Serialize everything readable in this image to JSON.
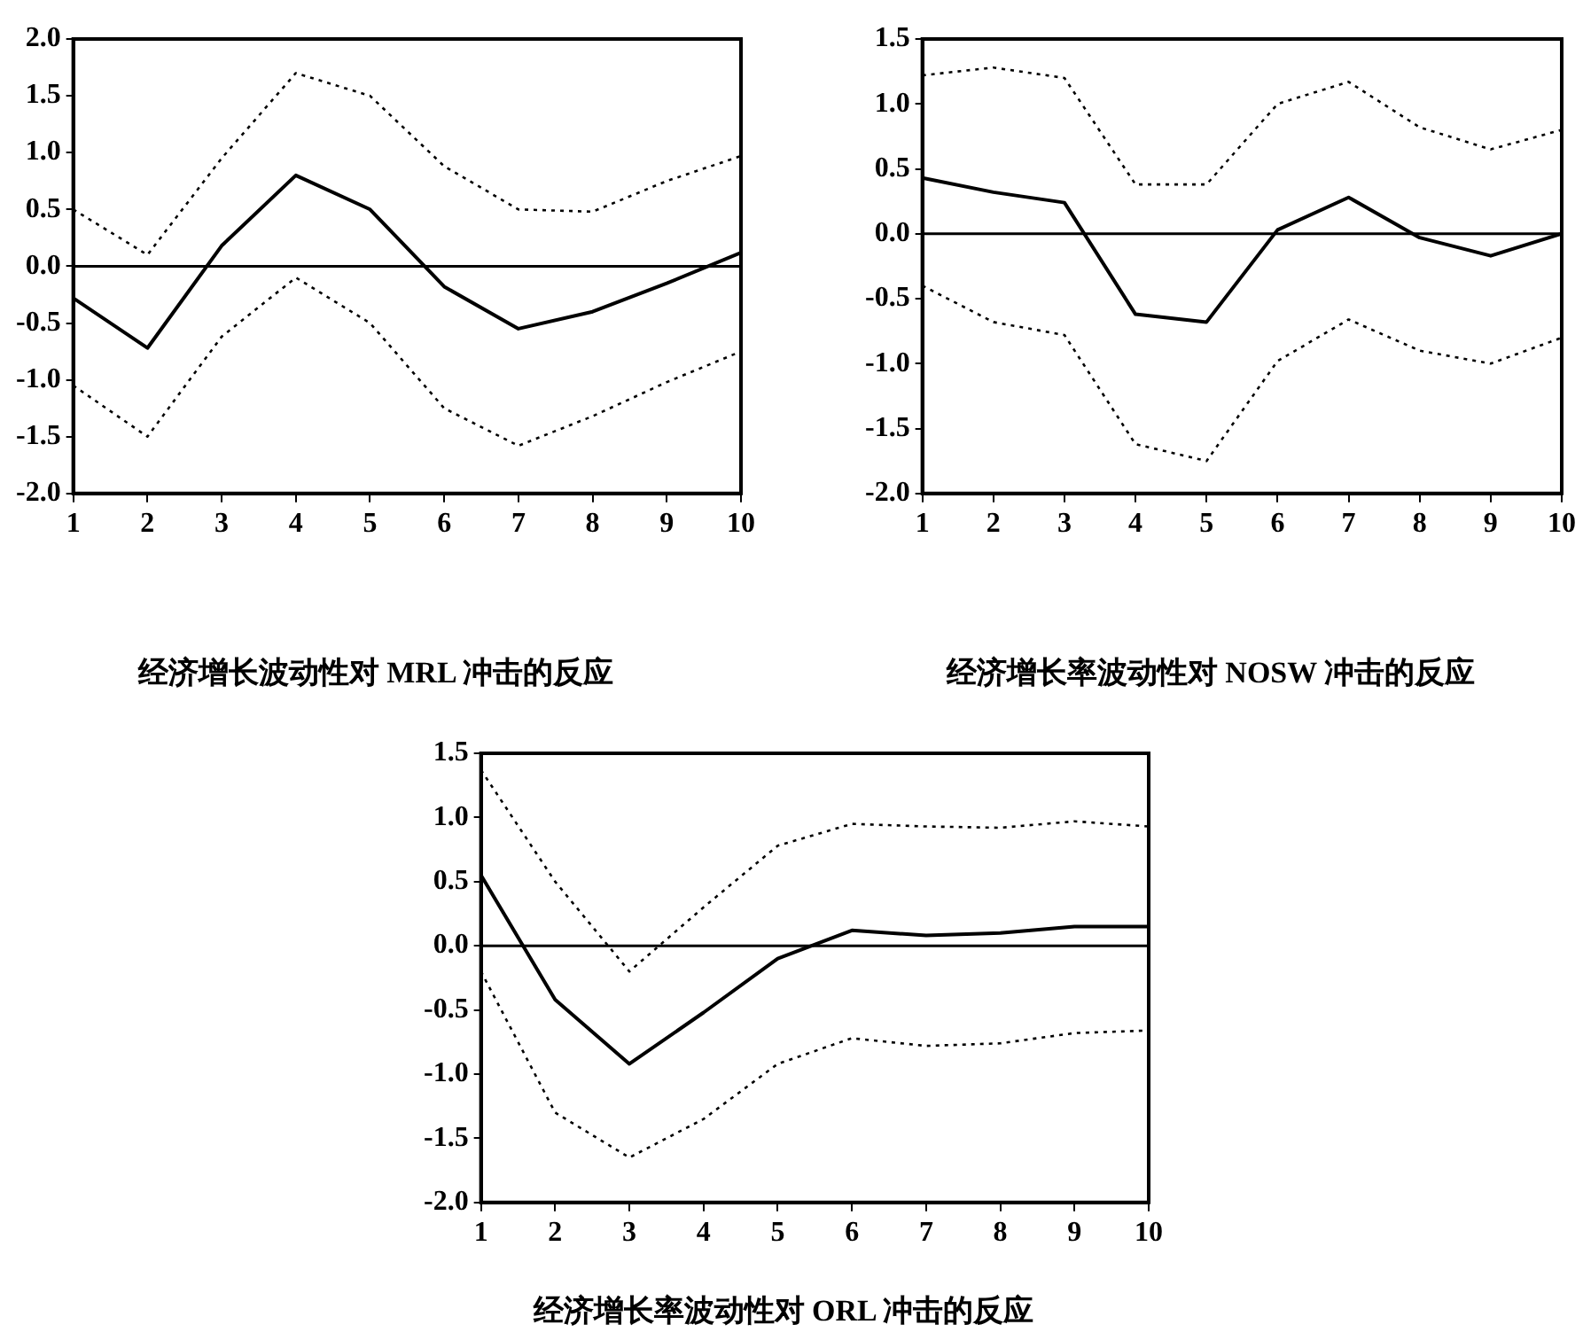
{
  "chart_data": [
    {
      "type": "line",
      "title": "经济增长波动性对 MRL 冲击的反应",
      "x": [
        1,
        2,
        3,
        4,
        5,
        6,
        7,
        8,
        9,
        10
      ],
      "xlim": [
        1,
        10
      ],
      "xticks": [
        1,
        2,
        3,
        4,
        5,
        6,
        7,
        8,
        9,
        10
      ],
      "ylim": [
        -2,
        2
      ],
      "yticks": [
        {
          "value": -2,
          "label": "-2.0"
        },
        {
          "value": -1.5,
          "label": "-1.5"
        },
        {
          "value": -1,
          "label": "-1.0"
        },
        {
          "value": -0.5,
          "label": "-0.5"
        },
        {
          "value": 0,
          "label": "0.0"
        },
        {
          "value": 0.5,
          "label": "0.5"
        },
        {
          "value": 1,
          "label": "1.0"
        },
        {
          "value": 1.5,
          "label": "1.5"
        },
        {
          "value": 2,
          "label": "2.0"
        }
      ],
      "marker": "none",
      "legend": false,
      "ref_lines": [
        {
          "axis": "y",
          "value": 0,
          "color": "#000000"
        }
      ],
      "series": [
        {
          "color": "#000000",
          "line_style": "solid",
          "values": [
            -0.28,
            -0.72,
            0.18,
            0.8,
            0.5,
            -0.18,
            -0.55,
            -0.4,
            -0.15,
            0.12
          ]
        },
        {
          "color": "#000000",
          "line_style": "dotted",
          "values": [
            0.5,
            0.1,
            0.95,
            1.7,
            1.5,
            0.88,
            0.5,
            0.48,
            0.75,
            0.97
          ]
        },
        {
          "color": "#000000",
          "line_style": "dotted",
          "values": [
            -1.05,
            -1.5,
            -0.62,
            -0.1,
            -0.5,
            -1.25,
            -1.58,
            -1.32,
            -1.02,
            -0.75
          ]
        }
      ]
    },
    {
      "type": "line",
      "title": "经济增长率波动性对 NOSW 冲击的反应",
      "x": [
        1,
        2,
        3,
        4,
        5,
        6,
        7,
        8,
        9,
        10
      ],
      "xlim": [
        1,
        10
      ],
      "xticks": [
        1,
        2,
        3,
        4,
        5,
        6,
        7,
        8,
        9,
        10
      ],
      "ylim": [
        -2,
        1.5
      ],
      "yticks": [
        {
          "value": -2,
          "label": "-2.0"
        },
        {
          "value": -1.5,
          "label": "-1.5"
        },
        {
          "value": -1,
          "label": "-1.0"
        },
        {
          "value": -0.5,
          "label": "-0.5"
        },
        {
          "value": 0,
          "label": "0.0"
        },
        {
          "value": 0.5,
          "label": "0.5"
        },
        {
          "value": 1,
          "label": "1.0"
        },
        {
          "value": 1.5,
          "label": "1.5"
        }
      ],
      "marker": "none",
      "legend": false,
      "ref_lines": [
        {
          "axis": "y",
          "value": 0,
          "color": "#000000"
        }
      ],
      "series": [
        {
          "color": "#000000",
          "line_style": "solid",
          "values": [
            0.43,
            0.32,
            0.24,
            -0.62,
            -0.68,
            0.03,
            0.28,
            -0.03,
            -0.17,
            0.0
          ]
        },
        {
          "color": "#000000",
          "line_style": "dotted",
          "values": [
            1.22,
            1.28,
            1.2,
            0.38,
            0.38,
            1.0,
            1.17,
            0.82,
            0.65,
            0.8
          ]
        },
        {
          "color": "#000000",
          "line_style": "dotted",
          "values": [
            -0.4,
            -0.68,
            -0.78,
            -1.62,
            -1.75,
            -0.98,
            -0.66,
            -0.9,
            -1.0,
            -0.8
          ]
        }
      ]
    },
    {
      "type": "line",
      "title": "经济增长率波动性对 ORL 冲击的反应",
      "x": [
        1,
        2,
        3,
        4,
        5,
        6,
        7,
        8,
        9,
        10
      ],
      "xlim": [
        1,
        10
      ],
      "xticks": [
        1,
        2,
        3,
        4,
        5,
        6,
        7,
        8,
        9,
        10
      ],
      "ylim": [
        -2,
        1.5
      ],
      "yticks": [
        {
          "value": -2,
          "label": "-2.0"
        },
        {
          "value": -1.5,
          "label": "-1.5"
        },
        {
          "value": -1,
          "label": "-1.0"
        },
        {
          "value": -0.5,
          "label": "-0.5"
        },
        {
          "value": 0,
          "label": "0.0"
        },
        {
          "value": 0.5,
          "label": "0.5"
        },
        {
          "value": 1,
          "label": "1.0"
        },
        {
          "value": 1.5,
          "label": "1.5"
        }
      ],
      "marker": "none",
      "legend": false,
      "ref_lines": [
        {
          "axis": "y",
          "value": 0,
          "color": "#000000"
        }
      ],
      "series": [
        {
          "color": "#000000",
          "line_style": "solid",
          "values": [
            0.55,
            -0.42,
            -0.92,
            -0.52,
            -0.1,
            0.12,
            0.08,
            0.1,
            0.15,
            0.15
          ]
        },
        {
          "color": "#000000",
          "line_style": "dotted",
          "values": [
            1.37,
            0.5,
            -0.2,
            0.3,
            0.78,
            0.95,
            0.93,
            0.92,
            0.97,
            0.93
          ]
        },
        {
          "color": "#000000",
          "line_style": "dotted",
          "values": [
            -0.2,
            -1.3,
            -1.65,
            -1.35,
            -0.92,
            -0.72,
            -0.78,
            -0.76,
            -0.68,
            -0.66
          ]
        }
      ]
    }
  ]
}
